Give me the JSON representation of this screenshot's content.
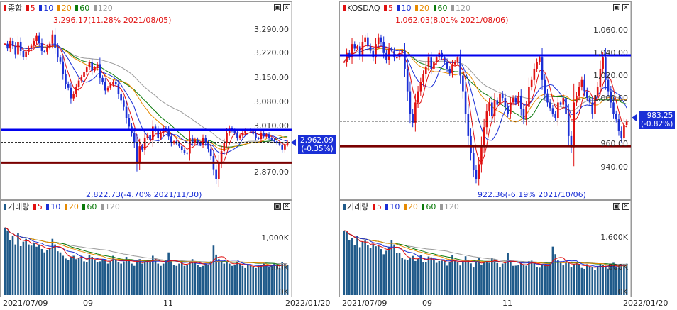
{
  "colors": {
    "up": "#e01010",
    "down": "#1a2fd6",
    "ma5": "#e01010",
    "ma10": "#1a2fd6",
    "ma20": "#e68a00",
    "ma60": "#0a7a0a",
    "ma120": "#9a9a9a",
    "support_line": "#7a0000",
    "resistance_line": "#0000ee",
    "volume_bar": "#1f5a8a"
  },
  "legend": {
    "ma5": "5",
    "ma10": "10",
    "ma20": "20",
    "ma60": "60",
    "ma120": "120"
  },
  "window_icons": {
    "maximize": "maximize-icon",
    "close": "close-icon"
  },
  "left": {
    "title": "종합",
    "volume_title": "거래량",
    "high_annotation": "3,296.17(11.28% 2021/08/05)",
    "low_annotation": "2,822.73(-4.70% 2021/11/30)",
    "price_ticks": [
      "3,290.00",
      "3,220.00",
      "3,150.00",
      "3,080.00",
      "3,010.00",
      "2,870.00"
    ],
    "current_price": "2,962.09",
    "current_change": "(-0.35%)",
    "volume_ticks": [
      "1,000K",
      "500K",
      "0K"
    ],
    "x_labels": [
      "2021/07/09",
      "09",
      "11",
      "2022/01/20"
    ]
  },
  "right": {
    "title": "KOSDAQ",
    "volume_title": "거래량",
    "high_annotation": "1,062.03(8.01% 2021/08/06)",
    "low_annotation": "922.36(-6.19% 2021/10/06)",
    "price_ticks": [
      "1,060.00",
      "1,040.00",
      "1,020.00",
      "1,000.00",
      "960.00",
      "940.00"
    ],
    "current_price": "983.25",
    "current_change": "(-0.82%)",
    "volume_ticks": [
      "1,600K",
      "800K",
      "0K"
    ],
    "x_labels": [
      "2021/07/09",
      "09",
      "11",
      "2022/01/20"
    ]
  },
  "chart_data": [
    {
      "type": "candlestick",
      "title": "종합",
      "x_range": [
        "2021/07/09",
        "2022/01/20"
      ],
      "y_ticks": [
        3290,
        3220,
        3150,
        3080,
        3010,
        2870
      ],
      "ylim": [
        2810,
        3350
      ],
      "current": 2962.09,
      "change_pct": -0.35,
      "high": {
        "value": 3296.17,
        "pct": 11.28,
        "date": "2021/08/05"
      },
      "low": {
        "value": 2822.73,
        "pct": -4.7,
        "date": "2021/11/30"
      },
      "horizontal_lines": {
        "resistance": 3000,
        "support": 2900
      },
      "moving_averages": [
        5,
        10,
        20,
        60,
        120
      ],
      "closes": [
        3262,
        3248,
        3270,
        3255,
        3230,
        3268,
        3240,
        3222,
        3236,
        3248,
        3256,
        3270,
        3286,
        3265,
        3240,
        3238,
        3252,
        3262,
        3290,
        3250,
        3220,
        3208,
        3170,
        3140,
        3128,
        3096,
        3110,
        3130,
        3150,
        3160,
        3175,
        3190,
        3205,
        3180,
        3188,
        3200,
        3158,
        3145,
        3120,
        3128,
        3138,
        3146,
        3138,
        3108,
        3090,
        3070,
        3035,
        3010,
        2990,
        2960,
        2900,
        2950,
        2940,
        2975,
        2985,
        2968,
        3010,
        3000,
        2976,
        2990,
        3006,
        3000,
        2980,
        2960,
        2965,
        2958,
        2950,
        2938,
        2930,
        2928,
        2976,
        2960,
        2970,
        2960,
        2955,
        2975,
        2960,
        2942,
        2920,
        2880,
        2850,
        2900,
        2935,
        2960,
        2990,
        3005,
        2998,
        2990,
        2975,
        2982,
        2990,
        2998,
        3000,
        2995,
        2988,
        2975,
        2972,
        2990,
        2980,
        2986,
        2975,
        2970,
        2965,
        2960,
        2955,
        2940,
        2955,
        2962
      ],
      "volume": {
        "y_ticks": [
          1000,
          500,
          0
        ],
        "unit": "K",
        "values": [
          1200,
          1150,
          980,
          1050,
          900,
          1100,
          870,
          950,
          1000,
          900,
          880,
          920,
          860,
          900,
          820,
          760,
          800,
          840,
          1000,
          900,
          780,
          760,
          700,
          650,
          620,
          680,
          700,
          640,
          660,
          700,
          600,
          580,
          720,
          680,
          620,
          590,
          600,
          640,
          620,
          560,
          600,
          700,
          640,
          580,
          560,
          600,
          680,
          640,
          560,
          520,
          600,
          640,
          560,
          600,
          620,
          580,
          700,
          660,
          560,
          520,
          560,
          620,
          760,
          600,
          540,
          520,
          560,
          600,
          520,
          540,
          600,
          640,
          580,
          540,
          500,
          520,
          560,
          540,
          600,
          880,
          720,
          640,
          580,
          560,
          600,
          560,
          520,
          540,
          600,
          560,
          520,
          480,
          540,
          520,
          500,
          480,
          520,
          540,
          560,
          520,
          500,
          540,
          560,
          520,
          480,
          580,
          560,
          540
        ]
      }
    },
    {
      "type": "candlestick",
      "title": "KOSDAQ",
      "x_range": [
        "2021/07/09",
        "2022/01/20"
      ],
      "y_ticks": [
        1060,
        1040,
        1020,
        1000,
        960,
        940
      ],
      "ylim": [
        920,
        1078
      ],
      "current": 983.25,
      "change_pct": -0.82,
      "high": {
        "value": 1062.03,
        "pct": 8.01,
        "date": "2021/08/06"
      },
      "low": {
        "value": 922.36,
        "pct": -6.19,
        "date": "2021/10/06"
      },
      "horizontal_lines": {
        "resistance": 1042,
        "support": 961
      },
      "moving_averages": [
        5,
        10,
        20,
        60,
        120
      ],
      "closes": [
        1036,
        1044,
        1040,
        1052,
        1048,
        1050,
        1042,
        1054,
        1058,
        1050,
        1046,
        1040,
        1052,
        1058,
        1054,
        1044,
        1038,
        1048,
        1046,
        1040,
        1040,
        1044,
        1046,
        1030,
        1010,
        990,
        982,
        1000,
        1010,
        1018,
        1025,
        1032,
        1040,
        1030,
        1036,
        1040,
        1044,
        1040,
        1036,
        1030,
        1026,
        1034,
        1036,
        1040,
        1024,
        1010,
        990,
        970,
        955,
        940,
        932,
        945,
        962,
        978,
        992,
        1000,
        988,
        1002,
        998,
        1008,
        1004,
        996,
        990,
        1000,
        1004,
        1000,
        1006,
        994,
        985,
        996,
        1014,
        1020,
        1030,
        1036,
        1040,
        1020,
        1008,
        1000,
        995,
        990,
        986,
        1000,
        998,
        1004,
        990,
        970,
        960,
        1000,
        1006,
        1014,
        1020,
        1010,
        1004,
        1000,
        990,
        1006,
        1014,
        1030,
        1040,
        1020,
        1010,
        1000,
        990,
        985,
        975,
        968,
        980,
        983
      ]
    }
  ]
}
